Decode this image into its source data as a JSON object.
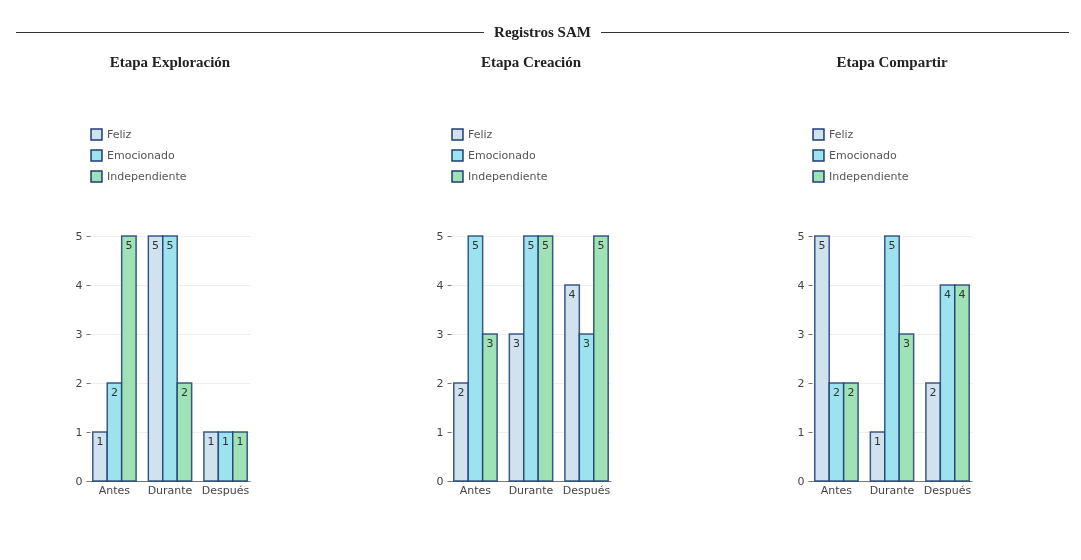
{
  "chart_data": [
    {
      "type": "other",
      "title": "Registros SAM"
    },
    {
      "type": "bar",
      "title": "Etapa Exploración",
      "categories": [
        "Antes",
        "Durante",
        "Después"
      ],
      "ylim": [
        0,
        5
      ],
      "yticks": [
        0,
        1,
        2,
        3,
        4,
        5
      ],
      "grid": "y",
      "legend": "top left",
      "data_labels": true,
      "series": [
        {
          "name": "Feliz",
          "color": "#cfe2ee",
          "values": [
            1,
            5,
            1
          ]
        },
        {
          "name": "Emocionado",
          "color": "#9ce2ef",
          "values": [
            2,
            5,
            1
          ]
        },
        {
          "name": "Independiente",
          "color": "#9ee2b6",
          "values": [
            5,
            2,
            1
          ]
        }
      ]
    },
    {
      "type": "bar",
      "title": "Etapa Creación",
      "categories": [
        "Antes",
        "Durante",
        "Después"
      ],
      "ylim": [
        0,
        5
      ],
      "yticks": [
        0,
        1,
        2,
        3,
        4,
        5
      ],
      "grid": "y",
      "legend": "top left",
      "data_labels": true,
      "series": [
        {
          "name": "Feliz",
          "color": "#cfe2ee",
          "values": [
            2,
            3,
            4
          ]
        },
        {
          "name": "Emocionado",
          "color": "#9ce2ef",
          "values": [
            5,
            5,
            3
          ]
        },
        {
          "name": "Independiente",
          "color": "#9ee2b6",
          "values": [
            3,
            5,
            5
          ]
        }
      ]
    },
    {
      "type": "bar",
      "title": "Etapa Compartir",
      "categories": [
        "Antes",
        "Durante",
        "Después"
      ],
      "ylim": [
        0,
        5
      ],
      "yticks": [
        0,
        1,
        2,
        3,
        4,
        5
      ],
      "grid": "y",
      "legend": "top left",
      "data_labels": true,
      "series": [
        {
          "name": "Feliz",
          "color": "#cfe2ee",
          "values": [
            5,
            1,
            2
          ]
        },
        {
          "name": "Emocionado",
          "color": "#9ce2ef",
          "values": [
            2,
            5,
            4
          ]
        },
        {
          "name": "Independiente",
          "color": "#9ee2b6",
          "values": [
            2,
            3,
            4
          ]
        }
      ]
    }
  ]
}
